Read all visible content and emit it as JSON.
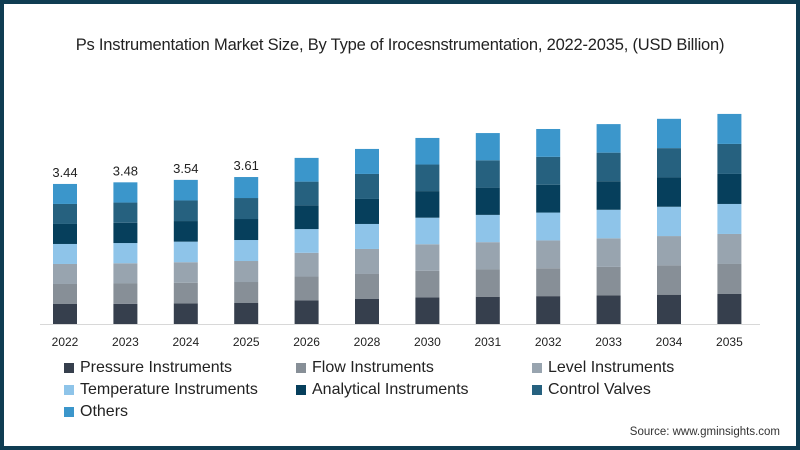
{
  "title": "Ps Instrumentation Market Size, By Type of Irocesnstrumentation, 2022-2035, (USD Billion)",
  "source": "Source: www.gminsights.com",
  "chart_data": {
    "type": "bar",
    "stacked": true,
    "title": "Ps Instrumentation Market Size, By Type of Irocesnstrumentation, 2022-2035, (USD Billion)",
    "xlabel": "",
    "ylabel": "",
    "categories": [
      "2022",
      "2023",
      "2024",
      "2025",
      "2026",
      "2028",
      "2030",
      "2031",
      "2032",
      "2033",
      "2034",
      "2035"
    ],
    "totals": [
      3.44,
      3.48,
      3.54,
      3.61,
      4.08,
      4.3,
      4.57,
      4.69,
      4.79,
      4.91,
      5.04,
      5.16
    ],
    "data_labels": [
      "3.44",
      "3.48",
      "3.54",
      "3.61",
      "",
      "",
      "",
      "",
      "",
      "",
      "",
      ""
    ],
    "series_names": [
      "Pressure Instruments",
      "Flow Instruments",
      "Level Instruments",
      "Temperature Instruments",
      "Analytical Instruments",
      "Control Valves",
      "Others"
    ],
    "series_colors": [
      "#363f4d",
      "#878f97",
      "#98a4af",
      "#8ec4e9",
      "#063f5c",
      "#26617f",
      "#3b96cb"
    ],
    "series_share": [
      0.1429,
      0.1429,
      0.1429,
      0.1429,
      0.1429,
      0.1429,
      0.1429
    ],
    "ylim": [
      0,
      5.5
    ],
    "grid": false,
    "legend_position": "bottom"
  }
}
